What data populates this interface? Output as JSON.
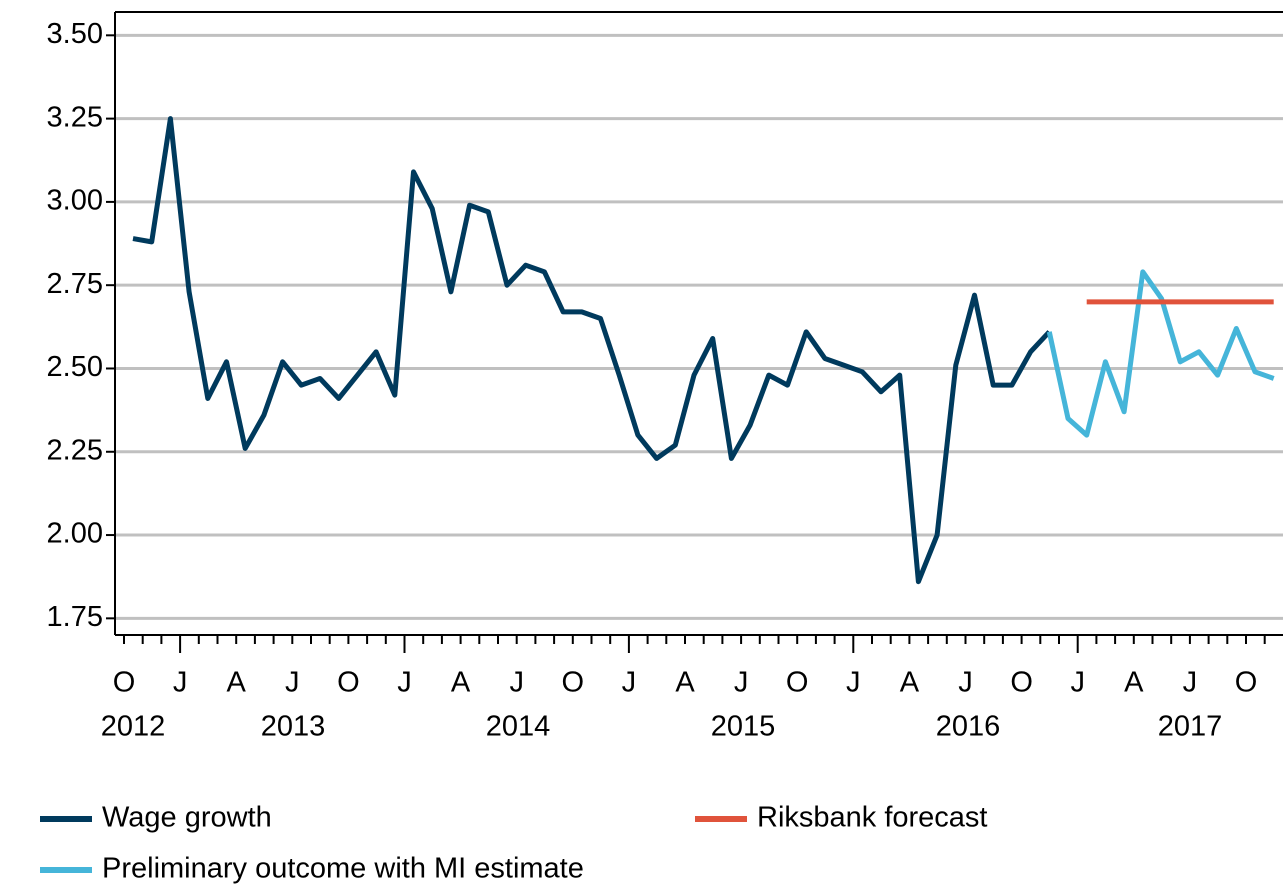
{
  "chart_data": {
    "type": "line",
    "categories": [
      "O",
      null,
      null,
      "J",
      null,
      null,
      "A",
      null,
      null,
      "J",
      null,
      null,
      "O",
      null,
      null,
      "J",
      null,
      null,
      "A",
      null,
      null,
      "J",
      null,
      null,
      "O",
      null,
      null,
      "J",
      null,
      null,
      "A",
      null,
      null,
      "J",
      null,
      null,
      "O",
      null,
      null,
      "J",
      null,
      null,
      "A",
      null,
      null,
      "J",
      null,
      null,
      "O",
      null,
      null,
      "J",
      null,
      null,
      "A",
      null,
      null,
      "J",
      null,
      null,
      "O",
      null
    ],
    "years": [
      "2012",
      "2013",
      "2014",
      "2015",
      "2016",
      "2017"
    ],
    "series": [
      {
        "name": "Wage growth",
        "color": "#003a5d",
        "values": [
          2.89,
          2.88,
          3.25,
          2.73,
          2.41,
          2.52,
          2.26,
          2.36,
          2.52,
          2.45,
          2.47,
          2.41,
          2.48,
          2.55,
          2.42,
          3.09,
          2.98,
          2.73,
          2.99,
          2.97,
          2.75,
          2.81,
          2.79,
          2.67,
          2.67,
          2.65,
          2.48,
          2.3,
          2.23,
          2.27,
          2.48,
          2.59,
          2.23,
          2.33,
          2.48,
          2.45,
          2.61,
          2.53,
          2.51,
          2.49,
          2.43,
          2.48,
          1.86,
          2.0,
          2.51,
          2.72,
          2.45,
          2.45,
          2.55,
          2.61,
          null,
          null,
          null,
          null,
          null,
          null,
          null,
          null,
          null,
          null,
          null,
          null
        ]
      },
      {
        "name": "Preliminary outcome with MI estimate",
        "color": "#45b5d9",
        "values": [
          null,
          null,
          null,
          null,
          null,
          null,
          null,
          null,
          null,
          null,
          null,
          null,
          null,
          null,
          null,
          null,
          null,
          null,
          null,
          null,
          null,
          null,
          null,
          null,
          null,
          null,
          null,
          null,
          null,
          null,
          null,
          null,
          null,
          null,
          null,
          null,
          null,
          null,
          null,
          null,
          null,
          null,
          null,
          null,
          null,
          null,
          null,
          null,
          null,
          2.61,
          2.35,
          2.3,
          2.52,
          2.37,
          2.79,
          2.71,
          2.52,
          2.55,
          2.48,
          2.62,
          2.49,
          2.47
        ]
      },
      {
        "name": "Riksbank forecast",
        "color": "#e0533b",
        "values": [
          null,
          null,
          null,
          null,
          null,
          null,
          null,
          null,
          null,
          null,
          null,
          null,
          null,
          null,
          null,
          null,
          null,
          null,
          null,
          null,
          null,
          null,
          null,
          null,
          null,
          null,
          null,
          null,
          null,
          null,
          null,
          null,
          null,
          null,
          null,
          null,
          null,
          null,
          null,
          null,
          null,
          null,
          null,
          null,
          null,
          null,
          null,
          null,
          null,
          null,
          null,
          2.7,
          2.7,
          2.7,
          2.7,
          2.7,
          2.7,
          2.7,
          2.7,
          2.7,
          2.7,
          2.7
        ]
      }
    ],
    "ylim": [
      1.7,
      3.57
    ],
    "yticks": [
      {
        "value": 1.75,
        "label": "1.75"
      },
      {
        "value": 2.0,
        "label": "2.00"
      },
      {
        "value": 2.25,
        "label": "2.25"
      },
      {
        "value": 2.5,
        "label": "2.50"
      },
      {
        "value": 2.75,
        "label": "2.75"
      },
      {
        "value": 3.0,
        "label": "3.00"
      },
      {
        "value": 3.25,
        "label": "3.25"
      },
      {
        "value": 3.5,
        "label": "3.50"
      }
    ],
    "grid": true
  }
}
